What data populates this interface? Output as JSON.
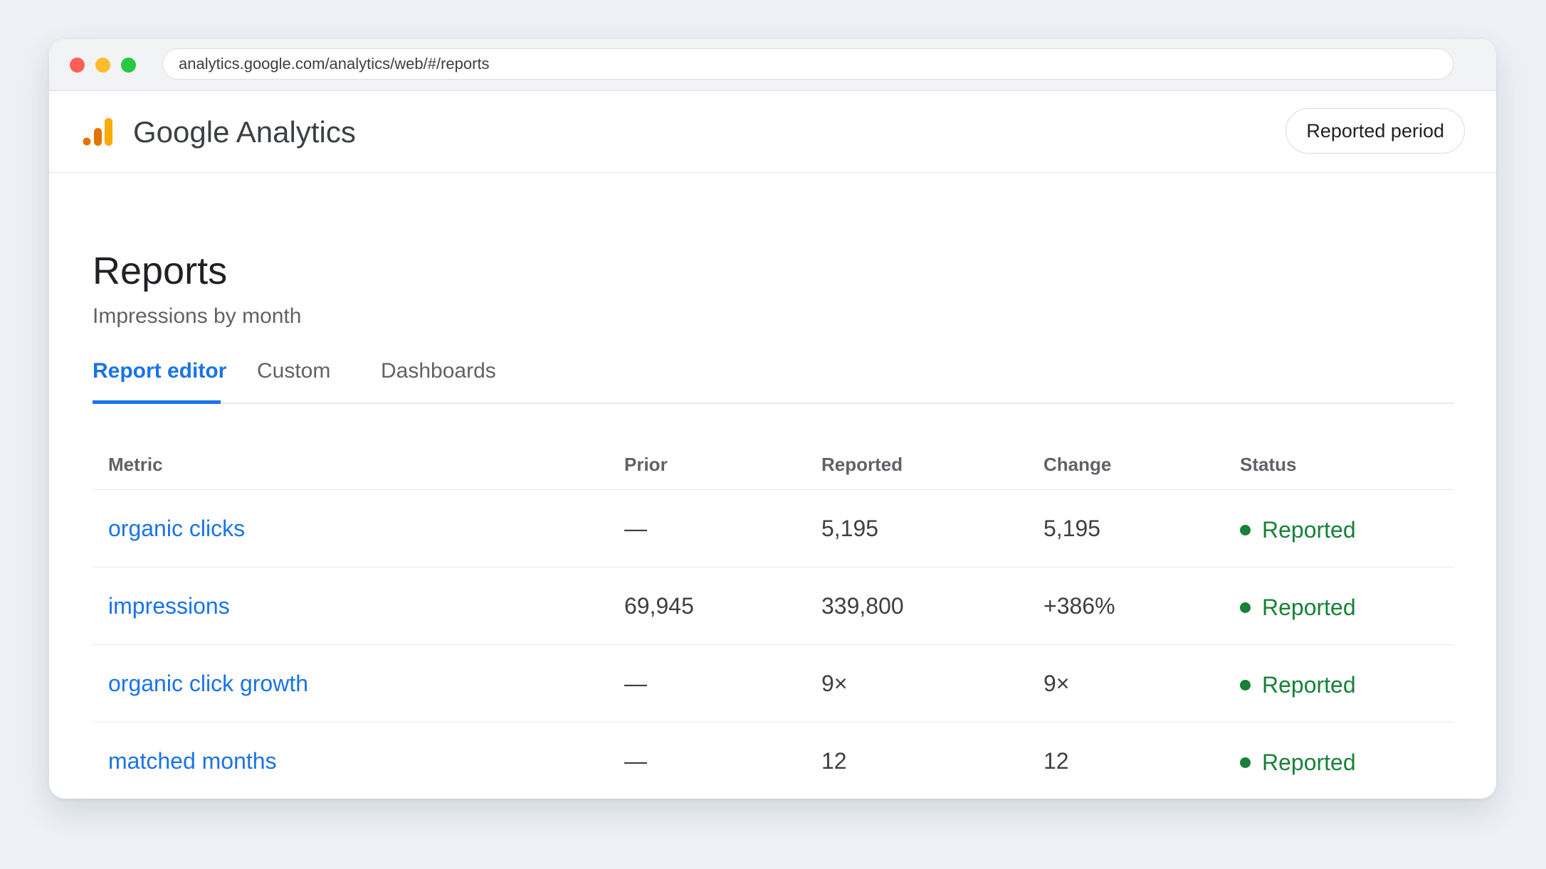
{
  "browser": {
    "url": "analytics.google.com/analytics/web/#/reports"
  },
  "app": {
    "name": "Google Analytics",
    "logo_icon": "analytics-bars-icon",
    "brand_colors": [
      "#e37400",
      "#f9ab00"
    ],
    "period_button_label": "Reported period"
  },
  "page": {
    "title": "Reports",
    "subtitle": "Impressions by month"
  },
  "tabs": [
    {
      "label": "Report editor",
      "active": true
    },
    {
      "label": "Custom",
      "active": false
    },
    {
      "label": "Dashboards",
      "active": false
    }
  ],
  "table": {
    "headers": [
      "Metric",
      "Prior",
      "Reported",
      "Change",
      "Status"
    ],
    "rows": [
      {
        "metric": "organic clicks",
        "prior": "—",
        "reported": "5,195",
        "change": "5,195",
        "status": "Reported"
      },
      {
        "metric": "impressions",
        "prior": "69,945",
        "reported": "339,800",
        "change": "+386%",
        "status": "Reported"
      },
      {
        "metric": "organic click growth",
        "prior": "—",
        "reported": "9×",
        "change": "9×",
        "status": "Reported"
      },
      {
        "metric": "matched months",
        "prior": "—",
        "reported": "12",
        "change": "12",
        "status": "Reported"
      }
    ]
  },
  "colors": {
    "accent": "#1a73e8",
    "status_reported": "#188038"
  }
}
